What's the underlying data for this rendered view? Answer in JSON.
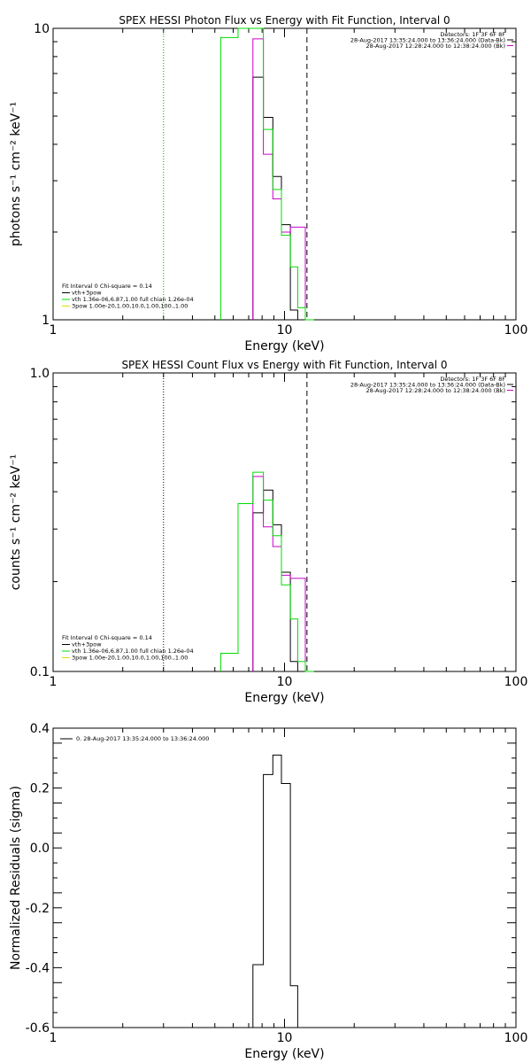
{
  "chart_data": [
    {
      "type": "line",
      "title": "SPEX HESSI Photon Flux vs Energy with Fit Function, Interval 0",
      "xlabel": "Energy (keV)",
      "ylabel": "photons s⁻¹ cm⁻² keV⁻¹",
      "xscale": "log",
      "yscale": "log",
      "xlim": [
        1,
        100
      ],
      "ylim": [
        1,
        10
      ],
      "x_tick_labels": [
        "1",
        "10",
        "100"
      ],
      "y_tick_labels": [
        "1",
        "10"
      ],
      "fit_range_markers": [
        3.0,
        12.5
      ],
      "legend_top_right": [
        "Detectors: 1F 3F 6F 8F",
        "28-Aug-2017 13:35:24.000 to 13:36:24.000 (Data-Bk)",
        "28-Aug-2017 12:28:24.000 to 12:38:24.000 (Bk)"
      ],
      "legend_bottom_left": [
        "Fit Interval 0   Chi-square = 0.14",
        "vth+3pow",
        "vth 1.36e-06,6.87,1.00   full chian 1.26e-04",
        "3pow 1.00e-20,1.00,10.0,1.00,100.,1.00"
      ],
      "series": [
        {
          "name": "Data-Bk",
          "color": "#000000",
          "bins": [
            [
              7.3,
              8.1,
              6.8
            ],
            [
              8.1,
              8.9,
              4.95
            ],
            [
              8.9,
              9.7,
              3.1
            ],
            [
              9.7,
              10.6,
              2.12
            ],
            [
              10.6,
              11.4,
              1.08
            ]
          ]
        },
        {
          "name": "Bk",
          "color": "#cc00cc",
          "bins": [
            [
              7.3,
              8.1,
              9.2
            ],
            [
              8.1,
              8.9,
              3.7
            ],
            [
              8.9,
              9.7,
              2.6
            ],
            [
              9.7,
              10.6,
              2.0
            ],
            [
              10.6,
              11.4,
              2.08
            ],
            [
              11.4,
              12.3,
              2.08
            ]
          ]
        },
        {
          "name": "vth+3pow",
          "color": "#00dd00",
          "bins": [
            [
              5.3,
              6.3,
              9.3
            ],
            [
              6.3,
              7.3,
              10.3
            ],
            [
              7.3,
              8.1,
              10.1
            ],
            [
              8.1,
              8.9,
              4.5
            ],
            [
              8.9,
              9.7,
              2.8
            ],
            [
              9.7,
              10.6,
              1.95
            ],
            [
              10.6,
              11.4,
              1.52
            ],
            [
              11.4,
              12.3,
              1.1
            ],
            [
              12.3,
              13.4,
              1.0
            ]
          ]
        }
      ]
    },
    {
      "type": "line",
      "title": "SPEX HESSI Count Flux vs Energy with Fit Function, Interval 0",
      "xlabel": "Energy (keV)",
      "ylabel": "counts s⁻¹ cm⁻² keV⁻¹",
      "xscale": "log",
      "yscale": "log",
      "xlim": [
        1,
        100
      ],
      "ylim": [
        0.1,
        1.0
      ],
      "x_tick_labels": [
        "1",
        "10",
        "100"
      ],
      "y_tick_labels": [
        "0.1",
        "1.0"
      ],
      "fit_range_markers": [
        3.0,
        12.5
      ],
      "legend_top_right": [
        "Detectors: 1F 3F 6F 8F",
        "28-Aug-2017 13:35:24.000 to 13:36:24.000 (Data-Bk)",
        "28-Aug-2017 12:28:24.000 to 12:38:24.000 (Bk)"
      ],
      "legend_bottom_left": [
        "Fit Interval 0   Chi-square = 0.14",
        "vth+3pow",
        "vth 1.36e-06,6.87,1.00   full chian 1.26e-04",
        "3pow 1.00e-20,1.00,10.0,1.00,100.,1.00"
      ],
      "series": [
        {
          "name": "Data-Bk",
          "color": "#000000",
          "bins": [
            [
              7.3,
              8.1,
              0.34
            ],
            [
              8.1,
              8.9,
              0.405
            ],
            [
              8.9,
              9.7,
              0.31
            ],
            [
              9.7,
              10.6,
              0.215
            ],
            [
              10.6,
              11.4,
              0.108
            ]
          ]
        },
        {
          "name": "Bk",
          "color": "#cc00cc",
          "bins": [
            [
              7.3,
              8.1,
              0.45
            ],
            [
              8.1,
              8.9,
              0.305
            ],
            [
              8.9,
              9.7,
              0.262
            ],
            [
              9.7,
              10.6,
              0.21
            ],
            [
              10.6,
              11.4,
              0.205
            ],
            [
              11.4,
              12.3,
              0.205
            ]
          ]
        },
        {
          "name": "vth+3pow",
          "color": "#00dd00",
          "bins": [
            [
              5.3,
              6.3,
              0.115
            ],
            [
              6.3,
              7.3,
              0.365
            ],
            [
              7.3,
              8.1,
              0.465
            ],
            [
              8.1,
              8.9,
              0.375
            ],
            [
              8.9,
              9.7,
              0.285
            ],
            [
              9.7,
              10.6,
              0.195
            ],
            [
              10.6,
              11.4,
              0.15
            ],
            [
              11.4,
              12.3,
              0.108
            ],
            [
              12.3,
              13.4,
              0.1
            ]
          ]
        }
      ]
    },
    {
      "type": "line",
      "title": "",
      "xlabel": "Energy (keV)",
      "ylabel": "Normalized Residuals (sigma)",
      "xscale": "log",
      "yscale": "linear",
      "xlim": [
        1,
        100
      ],
      "ylim": [
        -0.6,
        0.4
      ],
      "x_tick_labels": [
        "1",
        "10",
        "100"
      ],
      "y_tick_labels": [
        "0.4",
        "0.2",
        "0.0",
        "-0.2",
        "-0.4",
        "-0.6"
      ],
      "legend": [
        "0. 28-Aug-2017 13:35:24.000 to 13:36:24.000"
      ],
      "series": [
        {
          "name": "0. 28-Aug-2017 13:35:24.000 to 13:36:24.000",
          "color": "#000000",
          "bins": [
            [
              7.3,
              8.1,
              -0.39
            ],
            [
              8.1,
              8.9,
              0.245
            ],
            [
              8.9,
              9.7,
              0.31
            ],
            [
              9.7,
              10.6,
              0.215
            ],
            [
              10.6,
              11.4,
              -0.46
            ]
          ]
        }
      ]
    }
  ]
}
